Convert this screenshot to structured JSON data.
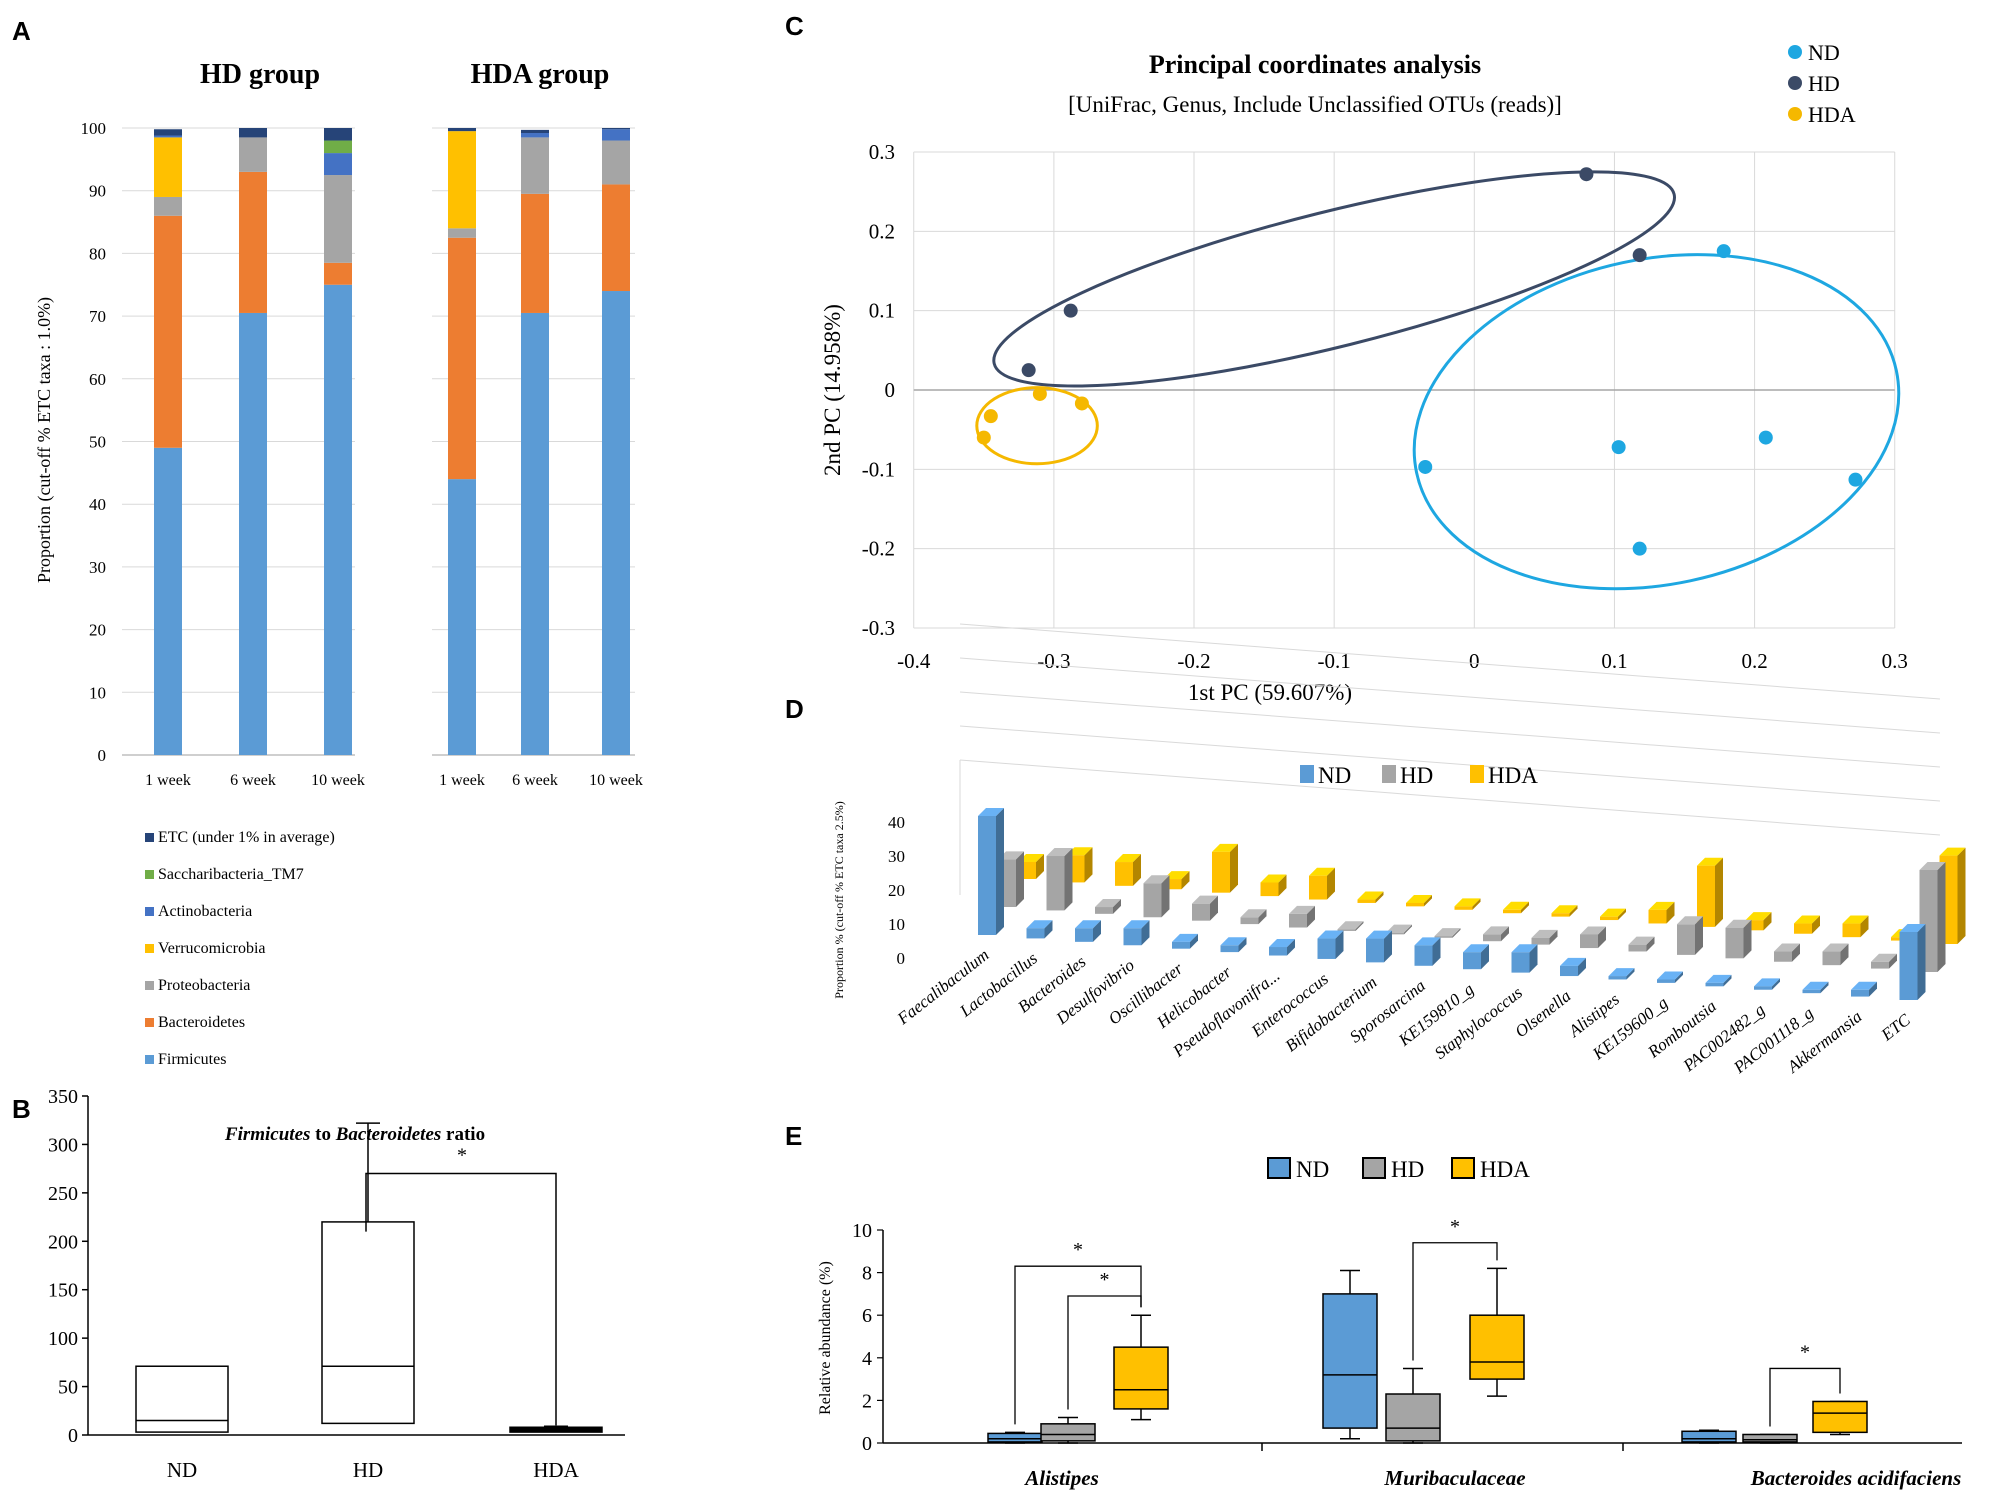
{
  "panel_labels": {
    "a": "A",
    "b": "B",
    "c": "C",
    "d": "D",
    "e": "E"
  },
  "colors": {
    "firmicutes": "#5b9bd5",
    "bacteroidetes": "#ed7d31",
    "proteobacteria": "#a5a5a5",
    "verrucomicrobia": "#ffc000",
    "actinobacteria": "#4472c4",
    "saccharibacteria": "#70ad47",
    "etc": "#264478",
    "nd": "#1ea7e1",
    "hd": "#3b4a66",
    "hda": "#f5b800",
    "d_nd": "#5b9bd5",
    "d_hd": "#a5a5a5",
    "d_hda": "#ffc000"
  },
  "chart_data": [
    {
      "id": "A",
      "type": "bar",
      "stacked": true,
      "ylabel": "Proportion (cut-off % ETC taxa : 1.0%)",
      "ylim": [
        0,
        100
      ],
      "yticks": [
        0,
        10,
        20,
        30,
        40,
        50,
        60,
        70,
        80,
        90,
        100
      ],
      "groups": [
        {
          "title": "HD group",
          "categories": [
            "1 week",
            "6 week",
            "10 week"
          ]
        },
        {
          "title": "HDA group",
          "categories": [
            "1 week",
            "6 week",
            "10 week"
          ]
        }
      ],
      "series": [
        {
          "name": "Firmicutes",
          "color_key": "firmicutes",
          "values": [
            49,
            70.5,
            75,
            44,
            70.5,
            74
          ]
        },
        {
          "name": "Bacteroidetes",
          "color_key": "bacteroidetes",
          "values": [
            37,
            22.5,
            3.5,
            38.5,
            19,
            17
          ]
        },
        {
          "name": "Proteobacteria",
          "color_key": "proteobacteria",
          "values": [
            3,
            5.5,
            14,
            1.5,
            9,
            7
          ]
        },
        {
          "name": "Verrucomicrobia",
          "color_key": "verrucomicrobia",
          "values": [
            9.5,
            0,
            0,
            15.5,
            0,
            0
          ]
        },
        {
          "name": "Actinobacteria",
          "color_key": "actinobacteria",
          "values": [
            0.3,
            0,
            3.5,
            0,
            0.7,
            1.8
          ]
        },
        {
          "name": "Saccharibacteria_TM7",
          "color_key": "saccharibacteria",
          "values": [
            0,
            0,
            2,
            0,
            0,
            0
          ]
        },
        {
          "name": "ETC (under 1% in average)",
          "color_key": "etc",
          "values": [
            1,
            1.5,
            2,
            0.5,
            0.5,
            0.2
          ]
        }
      ],
      "legend_order": [
        "ETC (under 1% in average)",
        "Saccharibacteria_TM7",
        "Actinobacteria",
        "Verrucomicrobia",
        "Proteobacteria",
        "Bacteroidetes",
        "Firmicutes"
      ]
    },
    {
      "id": "B",
      "type": "box",
      "title_parts": [
        "Firmicutes",
        " to ",
        "Bacteroidetes",
        " ratio"
      ],
      "categories": [
        "ND",
        "HD",
        "HDA"
      ],
      "ylim": [
        0,
        350
      ],
      "yticks": [
        0,
        50,
        100,
        150,
        200,
        250,
        300,
        350
      ],
      "boxes": [
        {
          "name": "ND",
          "min": 0,
          "q1": 3,
          "median": 15,
          "q3": 71,
          "max": 71
        },
        {
          "name": "HD",
          "min": 8,
          "q1": 12,
          "median": 71,
          "q3": 220,
          "max": 322
        },
        {
          "name": "HDA",
          "min": 2,
          "q1": 3,
          "median": 5,
          "q3": 8,
          "max": 9
        }
      ],
      "significance": [
        {
          "from": "HD",
          "to": "HDA",
          "label": "*"
        }
      ]
    },
    {
      "id": "C",
      "type": "scatter",
      "title": "Principal coordinates analysis",
      "subtitle": "[UniFrac, Genus, Include Unclassified OTUs (reads)]",
      "xlabel": "1st PC  (59.607%)",
      "ylabel": "2nd PC  (14.958%)",
      "xlim": [
        -0.4,
        0.3
      ],
      "ylim": [
        -0.3,
        0.3
      ],
      "xticks": [
        -0.4,
        -0.3,
        -0.2,
        -0.1,
        0,
        0.1,
        0.2,
        0.3
      ],
      "yticks": [
        -0.3,
        -0.2,
        -0.1,
        0,
        0.1,
        0.2,
        0.3
      ],
      "series": [
        {
          "name": "ND",
          "color_key": "nd",
          "points": [
            [
              -0.035,
              -0.097
            ],
            [
              0.103,
              -0.072
            ],
            [
              0.118,
              -0.2
            ],
            [
              0.178,
              0.175
            ],
            [
              0.208,
              -0.06
            ],
            [
              0.272,
              -0.113
            ]
          ]
        },
        {
          "name": "HD",
          "color_key": "hd",
          "points": [
            [
              -0.318,
              0.025
            ],
            [
              -0.288,
              0.1
            ],
            [
              0.08,
              0.272
            ],
            [
              0.118,
              0.17
            ]
          ]
        },
        {
          "name": "HDA",
          "color_key": "hda",
          "points": [
            [
              -0.35,
              -0.06
            ],
            [
              -0.345,
              -0.033
            ],
            [
              -0.31,
              -0.005
            ],
            [
              -0.28,
              -0.017
            ]
          ]
        }
      ],
      "ellipses": [
        {
          "series": "HD",
          "center": [
            -0.1,
            0.14
          ],
          "semi_axes": [
            0.25,
            0.085
          ],
          "rotation_deg": -14
        },
        {
          "series": "ND",
          "center": [
            0.13,
            -0.04
          ],
          "semi_axes": [
            0.175,
            0.205
          ],
          "rotation_deg": -12
        },
        {
          "series": "HDA",
          "center": [
            -0.312,
            -0.045
          ],
          "semi_axes": [
            0.043,
            0.048
          ],
          "rotation_deg": 0
        }
      ]
    },
    {
      "id": "D",
      "type": "bar",
      "projection": "3d",
      "ylabel": "Proportion % (cut-off % ETC taxa 2.5%)",
      "ylim": [
        0,
        40
      ],
      "yticks": [
        0,
        10,
        20,
        30,
        40
      ],
      "categories": [
        "Faecalibaculum",
        "Lactobacillus",
        "Bacteroides",
        "Desulfovibrio",
        "Oscillibacter",
        "Helicobacter",
        "Pseudoflavonifra...",
        "Enterococcus",
        "Bifidobacterium",
        "Sporosarcina",
        "KE159810_g",
        "Staphylococcus",
        "Olsenella",
        "Alistipes",
        "KE159600_g",
        "Romboutsia",
        "PAC002482_g",
        "PAC001118_g",
        "Akkermansia",
        "ETC"
      ],
      "series": [
        {
          "name": "ND",
          "color_key": "d_nd",
          "values": [
            35,
            3,
            4,
            5,
            2,
            2,
            2.5,
            6,
            7,
            6,
            5,
            6,
            3,
            1,
            1,
            1,
            1,
            1,
            2,
            20
          ]
        },
        {
          "name": "HD",
          "color_key": "d_hd",
          "values": [
            14,
            16,
            2,
            10,
            5,
            2,
            4,
            0.5,
            0.5,
            0.5,
            2,
            2,
            4,
            2,
            9,
            9,
            3,
            4,
            2,
            30
          ]
        },
        {
          "name": "HDA",
          "color_key": "d_hda",
          "values": [
            5,
            8,
            7,
            3,
            12,
            4,
            7,
            1,
            1,
            1,
            1,
            1,
            1,
            4,
            18,
            3,
            3,
            4,
            1,
            26
          ]
        }
      ]
    },
    {
      "id": "E",
      "type": "box",
      "ylabel": "Relative abundance (%)",
      "ylim": [
        0,
        10
      ],
      "yticks": [
        0,
        2,
        4,
        6,
        8,
        10
      ],
      "categories": [
        "Alistipes",
        "Muribaculaceae",
        "Bacteroides acidifaciens"
      ],
      "series_names": [
        "ND",
        "HD",
        "HDA"
      ],
      "boxes": [
        {
          "category": "Alistipes",
          "series": "ND",
          "min": 0,
          "q1": 0.05,
          "median": 0.2,
          "q3": 0.45,
          "max": 0.5
        },
        {
          "category": "Alistipes",
          "series": "HD",
          "min": 0,
          "q1": 0.1,
          "median": 0.4,
          "q3": 0.9,
          "max": 1.2
        },
        {
          "category": "Alistipes",
          "series": "HDA",
          "min": 1.1,
          "q1": 1.6,
          "median": 2.5,
          "q3": 4.5,
          "max": 6
        },
        {
          "category": "Muribaculaceae",
          "series": "ND",
          "min": 0.2,
          "q1": 0.7,
          "median": 3.2,
          "q3": 7,
          "max": 8.1
        },
        {
          "category": "Muribaculaceae",
          "series": "HD",
          "min": 0,
          "q1": 0.1,
          "median": 0.7,
          "q3": 2.3,
          "max": 3.5
        },
        {
          "category": "Muribaculaceae",
          "series": "HDA",
          "min": 2.2,
          "q1": 3,
          "median": 3.8,
          "q3": 6,
          "max": 8.2
        },
        {
          "category": "Bacteroides acidifaciens",
          "series": "ND",
          "min": 0,
          "q1": 0.05,
          "median": 0.2,
          "q3": 0.55,
          "max": 0.6
        },
        {
          "category": "Bacteroides acidifaciens",
          "series": "HD",
          "min": 0,
          "q1": 0.05,
          "median": 0.15,
          "q3": 0.4,
          "max": 0.4
        },
        {
          "category": "Bacteroides acidifaciens",
          "series": "HDA",
          "min": 0.4,
          "q1": 0.5,
          "median": 1.4,
          "q3": 1.95,
          "max": 1.95
        }
      ],
      "significance": [
        {
          "category": "Alistipes",
          "from": "ND",
          "to": "HDA",
          "label": "*"
        },
        {
          "category": "Alistipes",
          "from": "HD",
          "to": "HDA",
          "label": "*"
        },
        {
          "category": "Muribaculaceae",
          "from": "HD",
          "to": "HDA",
          "label": "*"
        },
        {
          "category": "Bacteroides acidifaciens",
          "from": "HD",
          "to": "HDA",
          "label": "*"
        }
      ]
    }
  ]
}
